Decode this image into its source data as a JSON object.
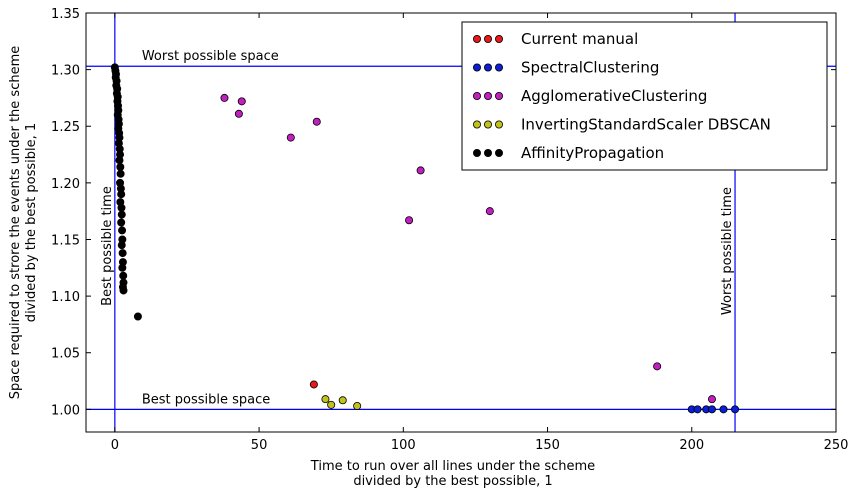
{
  "chart_data": {
    "type": "scatter",
    "xlabel": [
      "Time to run over all lines under the scheme",
      "divided by the best possible, 1"
    ],
    "ylabel": [
      "Space required to strore the events under the scheme",
      "divided by the best possible, 1"
    ],
    "xlim": [
      -10,
      250
    ],
    "ylim": [
      0.98,
      1.35
    ],
    "xticks": [
      0,
      50,
      100,
      150,
      200,
      250
    ],
    "yticks": [
      1.0,
      1.05,
      1.1,
      1.15,
      1.2,
      1.25,
      1.3,
      1.35
    ],
    "grid": false,
    "legend_position": "top-right",
    "reference_lines": [
      {
        "orientation": "horizontal",
        "value": 1.303,
        "label": "Worst possible space",
        "color": "#0000ff"
      },
      {
        "orientation": "horizontal",
        "value": 1.0,
        "label": "Best possible space",
        "color": "#0000ff"
      },
      {
        "orientation": "vertical",
        "value": 0,
        "label": "Best possible time",
        "color": "#0000ff"
      },
      {
        "orientation": "vertical",
        "value": 215,
        "label": "Worst possible time",
        "color": "#0000ff"
      }
    ],
    "series": [
      {
        "name": "Current manual",
        "color": "#e8191b",
        "points": [
          [
            69,
            1.022
          ]
        ]
      },
      {
        "name": "SpectralClustering",
        "color": "#0a1ed6",
        "points": [
          [
            200,
            1.0
          ],
          [
            202,
            1.0
          ],
          [
            205,
            1.0
          ],
          [
            207,
            1.0
          ],
          [
            211,
            1.0
          ],
          [
            215,
            1.0
          ]
        ]
      },
      {
        "name": "AgglomerativeClustering",
        "color": "#c21fc0",
        "points": [
          [
            38,
            1.275
          ],
          [
            44,
            1.272
          ],
          [
            43,
            1.261
          ],
          [
            70,
            1.254
          ],
          [
            61,
            1.24
          ],
          [
            106,
            1.211
          ],
          [
            130,
            1.175
          ],
          [
            102,
            1.167
          ],
          [
            188,
            1.038
          ],
          [
            207,
            1.009
          ]
        ]
      },
      {
        "name": "InvertingStandardScaler DBSCAN",
        "color": "#c2c21a",
        "points": [
          [
            73,
            1.009
          ],
          [
            75,
            1.004
          ],
          [
            79,
            1.008
          ],
          [
            84,
            1.003
          ]
        ]
      },
      {
        "name": "AffinityPropagation",
        "color": "#000000",
        "points": [
          [
            0,
            1.302
          ],
          [
            0.2,
            1.299
          ],
          [
            0.4,
            1.296
          ],
          [
            0.3,
            1.293
          ],
          [
            0.6,
            1.29
          ],
          [
            0.5,
            1.286
          ],
          [
            0.8,
            1.283
          ],
          [
            0.7,
            1.279
          ],
          [
            1.0,
            1.276
          ],
          [
            0.9,
            1.272
          ],
          [
            1.1,
            1.268
          ],
          [
            1.2,
            1.264
          ],
          [
            1.0,
            1.26
          ],
          [
            1.3,
            1.256
          ],
          [
            1.4,
            1.252
          ],
          [
            1.2,
            1.248
          ],
          [
            1.5,
            1.244
          ],
          [
            1.6,
            1.24
          ],
          [
            1.4,
            1.235
          ],
          [
            1.7,
            1.23
          ],
          [
            1.8,
            1.225
          ],
          [
            1.6,
            1.22
          ],
          [
            1.9,
            1.214
          ],
          [
            2.0,
            1.208
          ],
          [
            1.8,
            1.2
          ],
          [
            2.1,
            1.195
          ],
          [
            2.2,
            1.19
          ],
          [
            1.9,
            1.183
          ],
          [
            2.3,
            1.178
          ],
          [
            2.4,
            1.172
          ],
          [
            2.2,
            1.165
          ],
          [
            2.5,
            1.158
          ],
          [
            2.6,
            1.15
          ],
          [
            2.4,
            1.145
          ],
          [
            2.7,
            1.138
          ],
          [
            2.8,
            1.13
          ],
          [
            2.6,
            1.125
          ],
          [
            2.9,
            1.118
          ],
          [
            3.0,
            1.112
          ],
          [
            2.8,
            1.108
          ],
          [
            3.0,
            1.105
          ],
          [
            8,
            1.082
          ]
        ]
      }
    ]
  }
}
